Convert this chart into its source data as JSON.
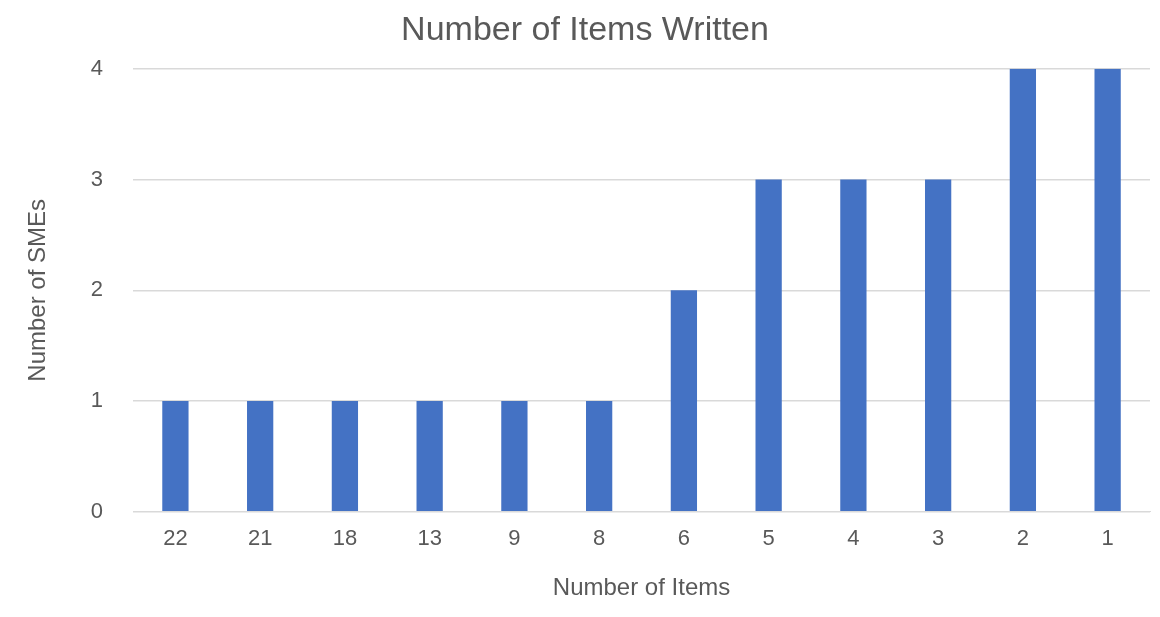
{
  "chart_data": {
    "type": "bar",
    "title": "Number of Items Written",
    "xlabel": "Number of Items",
    "ylabel": "Number of SMEs",
    "categories": [
      "22",
      "21",
      "18",
      "13",
      "9",
      "8",
      "6",
      "5",
      "4",
      "3",
      "2",
      "1"
    ],
    "values": [
      1,
      1,
      1,
      1,
      1,
      1,
      2,
      3,
      3,
      3,
      4,
      4
    ],
    "color": "#4472c4",
    "ylim": [
      0,
      4
    ],
    "yticks": [
      0,
      1,
      2,
      3,
      4
    ],
    "grid": "y"
  }
}
